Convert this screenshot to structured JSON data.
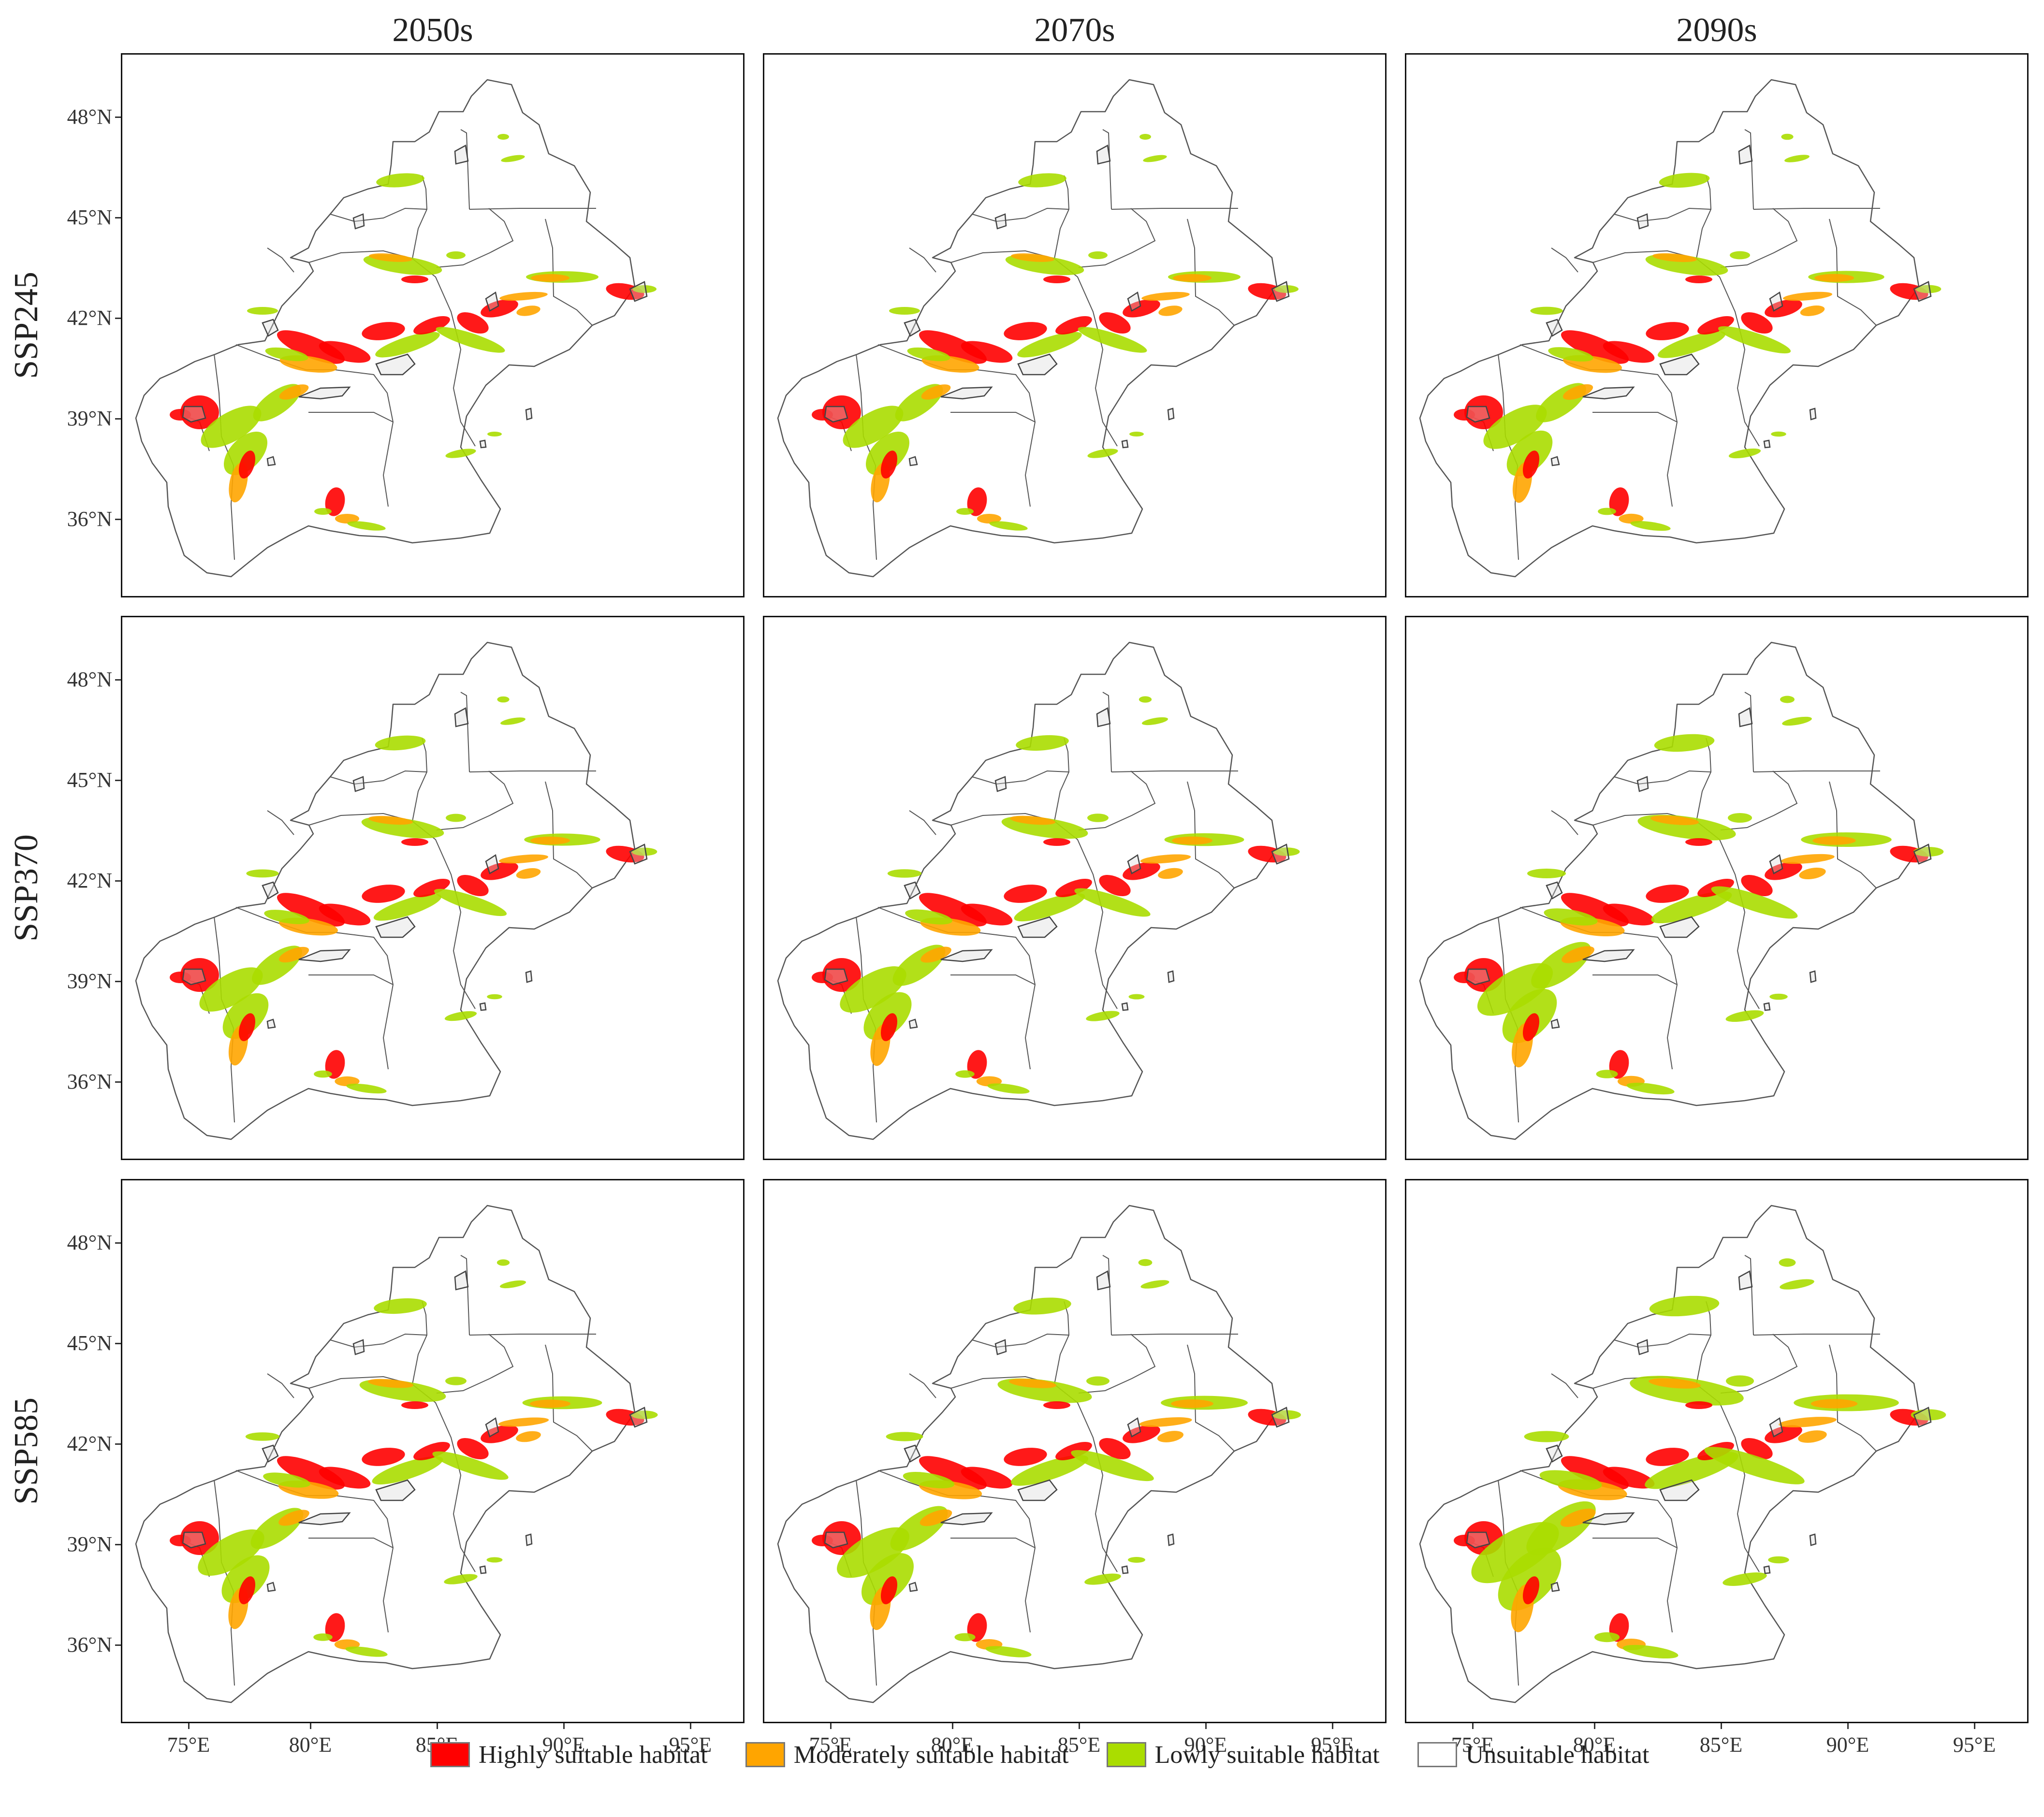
{
  "columns": [
    "2050s",
    "2070s",
    "2090s"
  ],
  "rows": [
    "SSP245",
    "SSP370",
    "SSP585"
  ],
  "lat_labels": [
    "48°N",
    "45°N",
    "42°N",
    "39°N",
    "36°N"
  ],
  "lon_labels": [
    "75°E",
    "80°E",
    "85°E",
    "90°E",
    "95°E"
  ],
  "legend": [
    {
      "label": "Highly suitable habitat",
      "color": "#ff0000"
    },
    {
      "label": "Moderately suitable habitat",
      "color": "#ffa500"
    },
    {
      "label": "Lowly suitable habitat",
      "color": "#aadd00"
    },
    {
      "label": "Unsuitable habitat",
      "color": "#ffffff"
    }
  ],
  "colors": {
    "outline": "#555555",
    "frame": "#111111"
  },
  "panel_suitability": [
    [
      1.0,
      1.0,
      1.05
    ],
    [
      1.05,
      1.1,
      1.25
    ],
    [
      1.1,
      1.2,
      1.45
    ]
  ]
}
